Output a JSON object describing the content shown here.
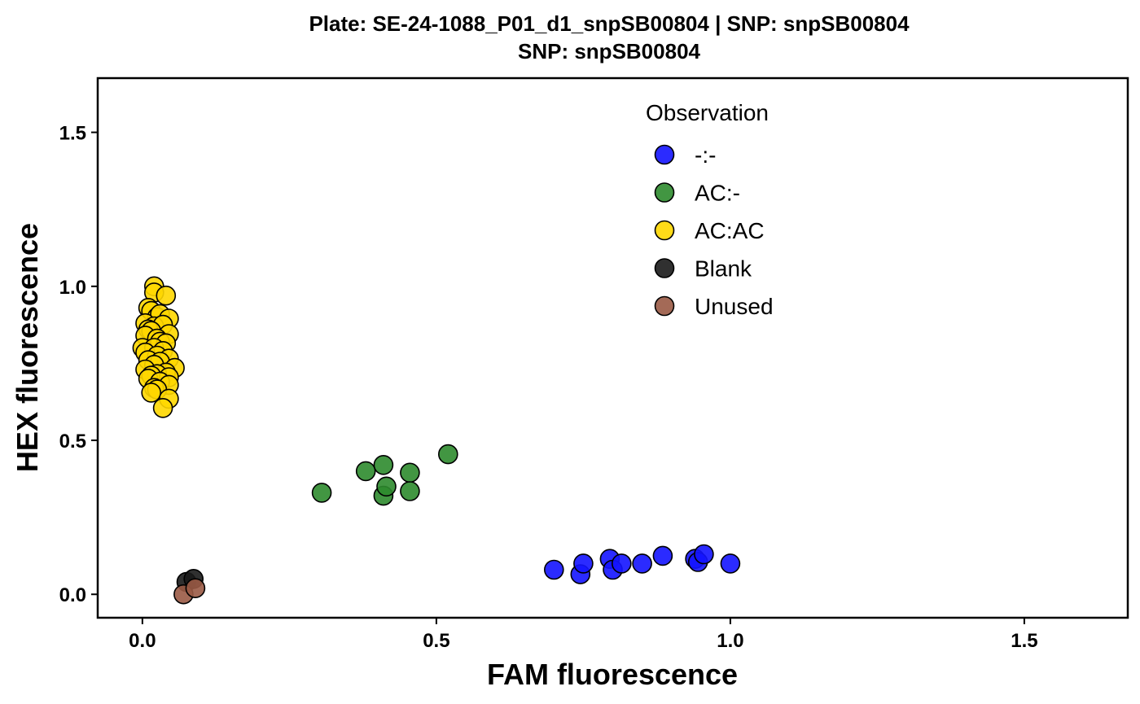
{
  "chart_data": {
    "type": "scatter",
    "title": "Plate: SE-24-1088_P01_d1_snpSB00804 | SNP: snpSB00804",
    "subtitle": "SNP:  snpSB00804",
    "xlabel": "FAM fluorescence",
    "ylabel": "HEX fluorescence",
    "xlim": [
      -0.076,
      1.676
    ],
    "ylim": [
      -0.076,
      1.676
    ],
    "xticks": [
      0.0,
      0.5,
      1.0,
      1.5
    ],
    "yticks": [
      0.0,
      0.5,
      1.0,
      1.5
    ],
    "xtick_labels": [
      "0.0",
      "0.5",
      "1.0",
      "1.5"
    ],
    "ytick_labels": [
      "0.0",
      "0.5",
      "1.0",
      "1.5"
    ],
    "grid": false,
    "legend": {
      "title": "Observation",
      "placement": "top-right"
    },
    "series": [
      {
        "name": "-:-",
        "color": "#1414ff",
        "points": [
          [
            0.7,
            0.08
          ],
          [
            0.745,
            0.065
          ],
          [
            0.75,
            0.1
          ],
          [
            0.795,
            0.115
          ],
          [
            0.8,
            0.08
          ],
          [
            0.815,
            0.1
          ],
          [
            0.85,
            0.1
          ],
          [
            0.885,
            0.125
          ],
          [
            0.94,
            0.115
          ],
          [
            0.945,
            0.105
          ],
          [
            0.955,
            0.13
          ],
          [
            1.0,
            0.1
          ]
        ]
      },
      {
        "name": "AC:-",
        "color": "#2e8b2e",
        "points": [
          [
            0.305,
            0.33
          ],
          [
            0.38,
            0.4
          ],
          [
            0.41,
            0.42
          ],
          [
            0.41,
            0.32
          ],
          [
            0.415,
            0.35
          ],
          [
            0.455,
            0.395
          ],
          [
            0.455,
            0.335
          ],
          [
            0.52,
            0.455
          ]
        ]
      },
      {
        "name": "AC:AC",
        "color": "#ffd700",
        "points": [
          [
            0.02,
            1.0
          ],
          [
            0.02,
            0.98
          ],
          [
            0.04,
            0.97
          ],
          [
            0.01,
            0.93
          ],
          [
            0.015,
            0.92
          ],
          [
            0.025,
            0.9
          ],
          [
            0.03,
            0.91
          ],
          [
            0.045,
            0.895
          ],
          [
            0.005,
            0.88
          ],
          [
            0.02,
            0.87
          ],
          [
            0.035,
            0.875
          ],
          [
            0.01,
            0.86
          ],
          [
            0.015,
            0.855
          ],
          [
            0.045,
            0.845
          ],
          [
            0.005,
            0.84
          ],
          [
            0.025,
            0.83
          ],
          [
            0.03,
            0.82
          ],
          [
            0.04,
            0.815
          ],
          [
            0.0,
            0.8
          ],
          [
            0.02,
            0.8
          ],
          [
            0.035,
            0.79
          ],
          [
            0.005,
            0.785
          ],
          [
            0.025,
            0.775
          ],
          [
            0.045,
            0.765
          ],
          [
            0.01,
            0.76
          ],
          [
            0.03,
            0.755
          ],
          [
            0.02,
            0.745
          ],
          [
            0.055,
            0.735
          ],
          [
            0.005,
            0.73
          ],
          [
            0.04,
            0.72
          ],
          [
            0.025,
            0.715
          ],
          [
            0.015,
            0.71
          ],
          [
            0.045,
            0.705
          ],
          [
            0.01,
            0.7
          ],
          [
            0.03,
            0.69
          ],
          [
            0.045,
            0.68
          ],
          [
            0.02,
            0.67
          ],
          [
            0.025,
            0.665
          ],
          [
            0.015,
            0.655
          ],
          [
            0.045,
            0.635
          ],
          [
            0.035,
            0.605
          ]
        ]
      },
      {
        "name": "Blank",
        "color": "#1a1a1a",
        "points": [
          [
            0.075,
            0.04
          ],
          [
            0.087,
            0.05
          ]
        ]
      },
      {
        "name": "Unused",
        "color": "#9a5a45",
        "points": [
          [
            0.07,
            0.0
          ],
          [
            0.09,
            0.02
          ]
        ]
      }
    ]
  }
}
